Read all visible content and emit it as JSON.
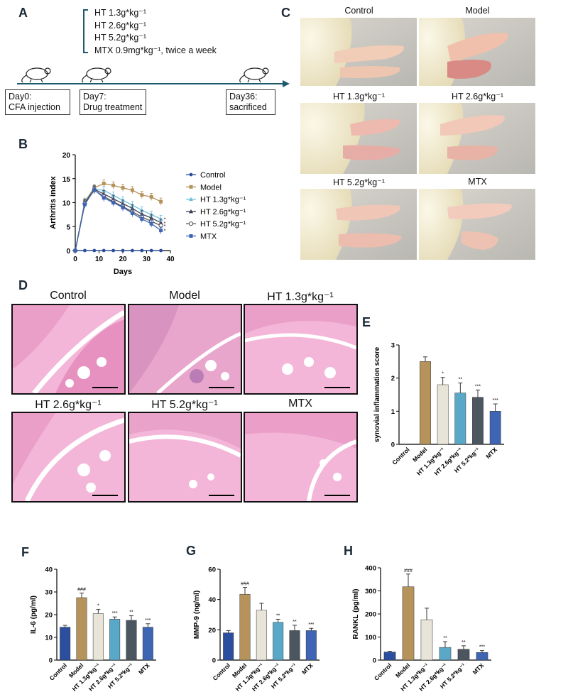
{
  "panelA": {
    "letter": "A",
    "treatments": [
      "HT 1.3g*kg⁻¹",
      "HT 2.6g*kg⁻¹",
      "HT 5.2g*kg⁻¹",
      "MTX 0.9mg*kg⁻¹,   twice a week"
    ],
    "events": [
      {
        "line1": "Day0:",
        "line2": "CFA injection"
      },
      {
        "line1": "Day7:",
        "line2": "Drug treatment"
      },
      {
        "line1": "Day36:",
        "line2": "sacrificed"
      }
    ]
  },
  "panelC": {
    "letter": "C",
    "photos": [
      "Control",
      "Model",
      "HT 1.3g*kg⁻¹",
      "HT 2.6g*kg⁻¹",
      "HT 5.2g*kg⁻¹",
      "MTX"
    ]
  },
  "panelD": {
    "letter": "D",
    "images": [
      "Control",
      "Model",
      "HT 1.3g*kg⁻¹",
      "HT 2.6g*kg⁻¹",
      "HT 5.2g*kg⁻¹",
      "MTX"
    ]
  },
  "colors": {
    "control": "#2b4e9e",
    "model": "#b5935a",
    "ht13": "#e8e4d8",
    "ht26": "#5aa8c8",
    "ht52": "#4c5660",
    "mtx": "#3e64b4"
  },
  "chart_data": [
    {
      "id": "B",
      "letter": "B",
      "type": "line",
      "xlabel": "Days",
      "ylabel": "Arthritis index",
      "xlim": [
        0,
        40
      ],
      "ylim": [
        0,
        20
      ],
      "xticks": [
        "0",
        "10",
        "20",
        "30",
        "40"
      ],
      "yticks": [
        "0",
        "5",
        "10",
        "15",
        "20"
      ],
      "x": [
        0,
        4,
        8,
        12,
        16,
        20,
        24,
        28,
        32,
        36
      ],
      "sig": "*",
      "series": [
        {
          "name": "Control",
          "values": [
            0,
            0,
            0,
            0,
            0,
            0,
            0,
            0,
            0,
            0
          ]
        },
        {
          "name": "Model",
          "values": [
            0,
            10.2,
            13.1,
            14.0,
            13.6,
            13.1,
            12.6,
            11.6,
            11.2,
            10.2
          ]
        },
        {
          "name": "HT 1.3g*kg⁻¹",
          "values": [
            0,
            10.0,
            12.8,
            12.6,
            11.5,
            10.5,
            9.5,
            8.4,
            7.5,
            6.6
          ]
        },
        {
          "name": "HT 2.6g*kg⁻¹",
          "values": [
            0,
            9.9,
            12.8,
            11.8,
            10.8,
            9.8,
            8.8,
            7.6,
            6.8,
            5.8
          ]
        },
        {
          "name": "HT 5.2g*kg⁻¹",
          "values": [
            0,
            9.8,
            12.6,
            11.3,
            10.2,
            9.2,
            8.1,
            7.0,
            6.1,
            5.2
          ]
        },
        {
          "name": "MTX",
          "values": [
            0,
            9.6,
            12.7,
            11.0,
            10.0,
            9.0,
            7.8,
            6.6,
            5.6,
            4.2
          ]
        }
      ]
    },
    {
      "id": "E",
      "letter": "E",
      "type": "bar",
      "ylabel": "synovial inflammation score",
      "ylim": [
        0,
        3
      ],
      "yticks": [
        "0",
        "1",
        "2",
        "3"
      ],
      "categories": [
        "Control",
        "Model",
        "HT 1.3g*kg⁻¹",
        "HT 2.6g*kg⁻¹",
        "HT 5.2*kg⁻¹",
        "MTX"
      ],
      "values": [
        0,
        2.5,
        1.8,
        1.55,
        1.42,
        1.0
      ],
      "errors": [
        0,
        0.14,
        0.22,
        0.3,
        0.22,
        0.22
      ],
      "sig": [
        "",
        "",
        "*",
        "**",
        "***",
        "***"
      ]
    },
    {
      "id": "F",
      "letter": "F",
      "type": "bar",
      "ylabel": "IL-6 (pg/ml)",
      "ylim": [
        0,
        40
      ],
      "yticks": [
        "0",
        "10",
        "20",
        "30",
        "40"
      ],
      "categories": [
        "Control",
        "Model",
        "HT 1.3g*kg⁻¹",
        "HT 2.6g*kg⁻¹",
        "HT 5.2*kg⁻¹",
        "MTX"
      ],
      "values": [
        14.5,
        27.5,
        20.5,
        18.0,
        17.5,
        14.5
      ],
      "errors": [
        0.8,
        2.0,
        1.8,
        1.0,
        2.0,
        1.5
      ],
      "sig": [
        "",
        "###",
        "*",
        "***",
        "**",
        "***"
      ]
    },
    {
      "id": "G",
      "letter": "G",
      "type": "bar",
      "ylabel": "MMP-9 (ng/ml)",
      "ylim": [
        0,
        60
      ],
      "yticks": [
        "0",
        "20",
        "40",
        "60"
      ],
      "categories": [
        "Control",
        "Model",
        "HT 1.3g*kg⁻¹",
        "HT 2.6g*kg⁻¹",
        "HT 5.2*kg⁻¹",
        "MTX"
      ],
      "values": [
        18.0,
        43.5,
        33.0,
        25.0,
        19.5,
        19.5
      ],
      "errors": [
        1.5,
        4.5,
        4.5,
        2.0,
        3.5,
        1.5
      ],
      "sig": [
        "",
        "###",
        "",
        "**",
        "**",
        "***"
      ]
    },
    {
      "id": "H",
      "letter": "H",
      "type": "bar",
      "ylabel": "RANKL (pg/ml)",
      "ylim": [
        0,
        400
      ],
      "yticks": [
        "0",
        "100",
        "200",
        "300",
        "400"
      ],
      "categories": [
        "Control",
        "Model",
        "HT 1.3g*kg⁻¹",
        "HT 2.6g*kg⁻¹",
        "HT 5.2*kg⁻¹",
        "MTX"
      ],
      "values": [
        35,
        318,
        175,
        55,
        47,
        33
      ],
      "errors": [
        3,
        55,
        50,
        25,
        15,
        8
      ],
      "sig": [
        "",
        "###",
        "",
        "**",
        "**",
        "***"
      ]
    }
  ]
}
